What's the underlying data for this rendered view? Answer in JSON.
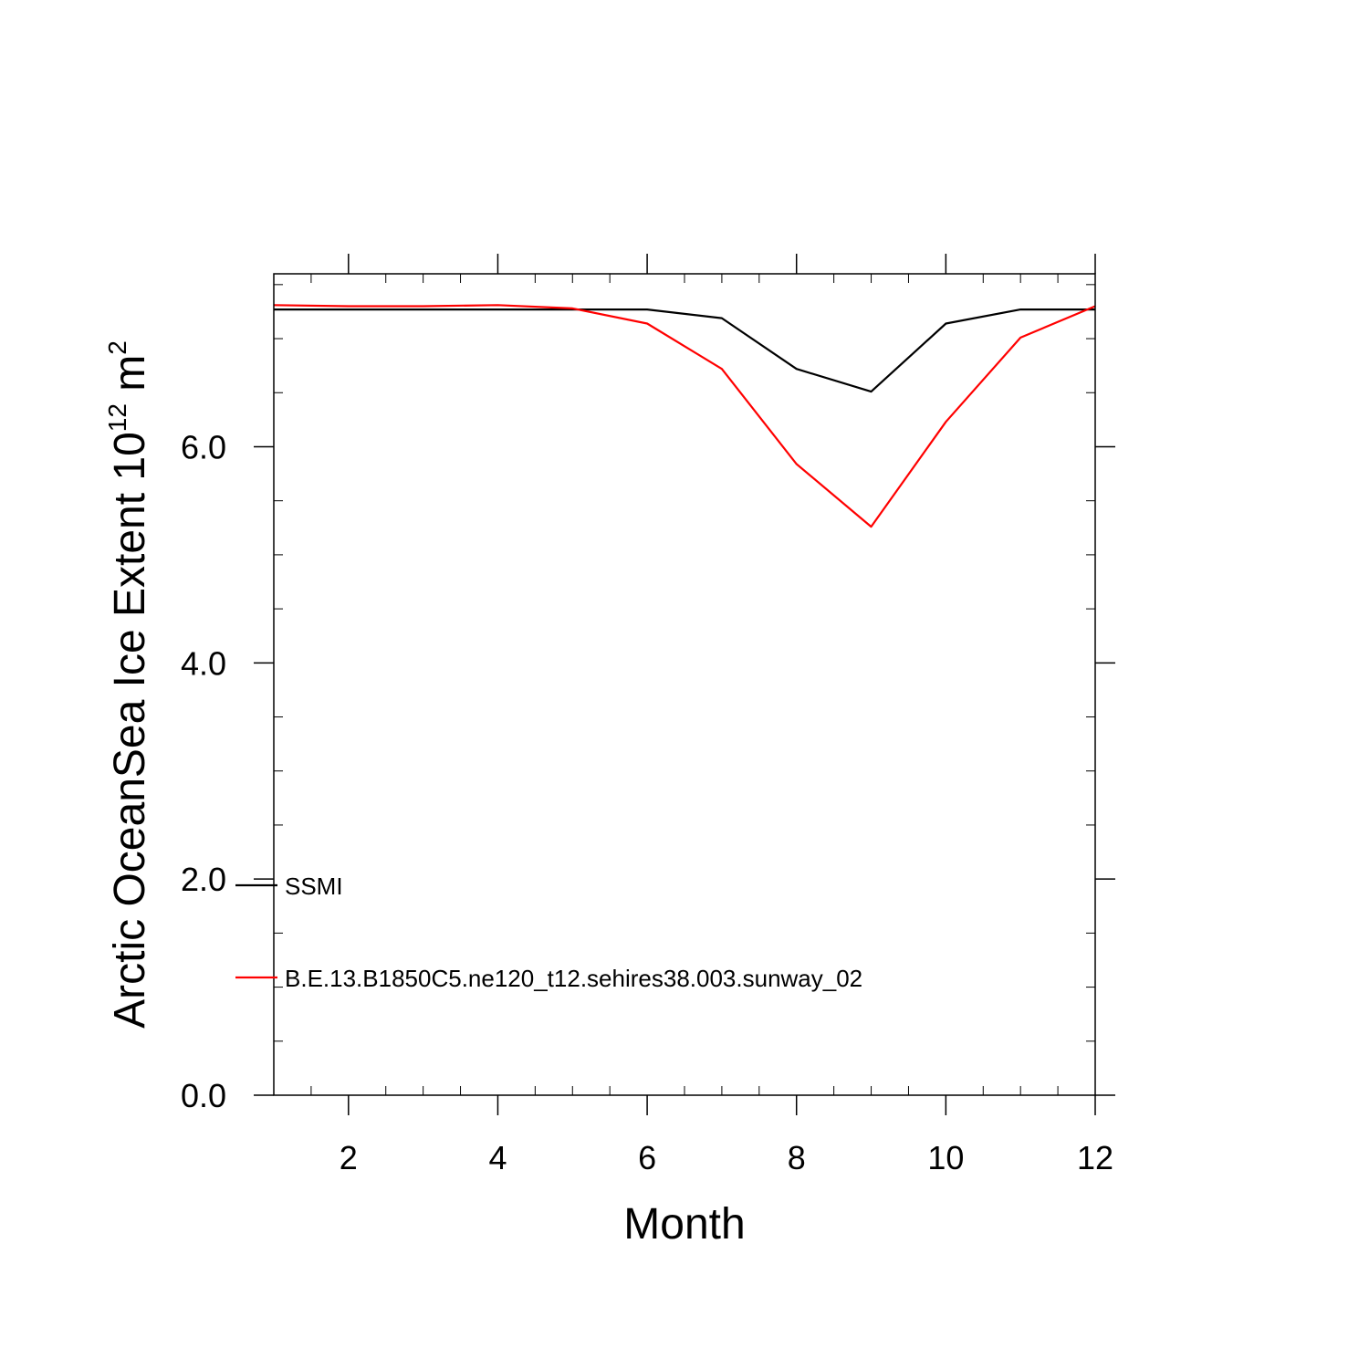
{
  "chart_data": {
    "type": "line",
    "xlabel": "Month",
    "ylabel": {
      "main": "Arctic OceanSea Ice Extent 10",
      "exponent": "12",
      "unit": " m",
      "unit_exponent": "2"
    },
    "xlim": [
      1,
      12
    ],
    "ylim": [
      0,
      7.6
    ],
    "x_ticks": [
      {
        "value": 2,
        "label": "2"
      },
      {
        "value": 4,
        "label": "4"
      },
      {
        "value": 6,
        "label": "6"
      },
      {
        "value": 8,
        "label": "8"
      },
      {
        "value": 10,
        "label": "10"
      },
      {
        "value": 12,
        "label": "12"
      }
    ],
    "y_ticks": [
      {
        "value": 0,
        "label": "0.0"
      },
      {
        "value": 2,
        "label": "2.0"
      },
      {
        "value": 4,
        "label": "4.0"
      },
      {
        "value": 6,
        "label": "6.0"
      }
    ],
    "x": [
      1,
      2,
      3,
      4,
      5,
      6,
      7,
      8,
      9,
      10,
      11,
      12
    ],
    "series": [
      {
        "name": "SSMI",
        "color": "#000000",
        "values": [
          7.27,
          7.27,
          7.27,
          7.27,
          7.27,
          7.27,
          7.19,
          6.72,
          6.51,
          7.14,
          7.27,
          7.27
        ]
      },
      {
        "name": "B.E.13.B1850C5.ne120_t12.sehires38.003.sunway_02",
        "color": "#ff0000",
        "values": [
          7.31,
          7.3,
          7.3,
          7.31,
          7.28,
          7.14,
          6.72,
          5.84,
          5.26,
          6.23,
          7.01,
          7.3
        ]
      }
    ],
    "legend_position": "bottom-left inside",
    "grid": false
  }
}
